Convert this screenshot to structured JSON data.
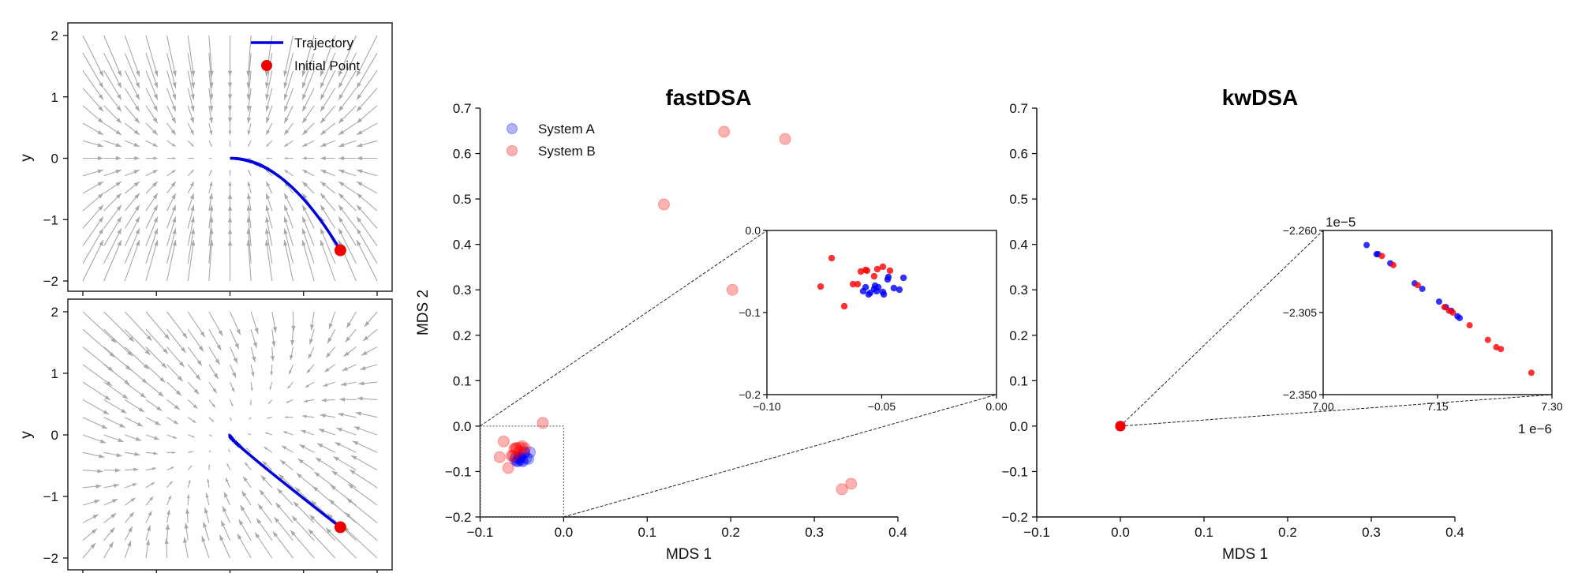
{
  "chart_data": [
    {
      "id": "phase-top",
      "type": "quiver",
      "ylabel": "y",
      "xlabel": "",
      "xlim": [
        -2.2,
        2.2
      ],
      "ylim": [
        -2.2,
        2.2
      ],
      "yticks": [
        2,
        1,
        0,
        -1,
        -2
      ],
      "ytick_labels": [
        "2",
        "1",
        "0",
        "−1",
        "−2"
      ],
      "xticks": [
        -2,
        -1,
        0,
        1,
        2
      ],
      "grid_range": [
        -2,
        2
      ],
      "grid_n": 15,
      "field_matrix": [
        [
          -0.5,
          0.0
        ],
        [
          0.0,
          -1.0
        ]
      ],
      "initial_point": [
        1.5,
        -1.5
      ],
      "equilibrium": [
        0,
        0
      ],
      "legend": [
        {
          "label": "Trajectory",
          "kind": "line",
          "color": "#0000dd"
        },
        {
          "label": "Initial Point",
          "kind": "marker",
          "color": "#ee0000"
        }
      ],
      "legend_position": "top-right",
      "colors": {
        "trajectory": "#0000dd",
        "initial_point": "#ee0000",
        "arrows": "#a8a8a8"
      }
    },
    {
      "id": "phase-bottom",
      "type": "quiver",
      "ylabel": "y",
      "xlabel": "",
      "xlim": [
        -2.2,
        2.2
      ],
      "ylim": [
        -2.2,
        2.2
      ],
      "yticks": [
        2,
        1,
        0,
        -1,
        -2
      ],
      "ytick_labels": [
        "2",
        "1",
        "0",
        "−1",
        "−2"
      ],
      "xticks": [
        -2,
        -1,
        0,
        1,
        2
      ],
      "grid_range": [
        -2,
        2
      ],
      "grid_n": 15,
      "field_matrix": [
        [
          -1.0,
          0.45
        ],
        [
          0.35,
          -1.0
        ]
      ],
      "initial_point": [
        1.5,
        -1.5
      ],
      "equilibrium": [
        0,
        0
      ],
      "colors": {
        "trajectory": "#0000dd",
        "initial_point": "#ee0000",
        "arrows": "#a8a8a8"
      }
    },
    {
      "id": "fastdsa",
      "type": "scatter",
      "title": "fastDSA",
      "xlabel": "MDS 1",
      "ylabel": "MDS 2",
      "xlim": [
        -0.1,
        0.4
      ],
      "ylim": [
        -0.2,
        0.7
      ],
      "xticks": [
        -0.1,
        0.0,
        0.1,
        0.2,
        0.3,
        0.4
      ],
      "xtick_labels": [
        "−0.1",
        "0.0",
        "0.1",
        "0.2",
        "0.3",
        "0.4"
      ],
      "yticks": [
        0.7,
        0.6,
        0.5,
        0.4,
        0.3,
        0.2,
        0.1,
        0.0,
        -0.1,
        -0.2
      ],
      "ytick_labels": [
        "0.7",
        "0.6",
        "0.5",
        "0.4",
        "0.3",
        "0.2",
        "0.1",
        "0.0",
        "−0.1",
        "−0.2"
      ],
      "grid": false,
      "legend_position": "top-left",
      "series": [
        {
          "name": "System A",
          "color": "#0000ff",
          "points": [
            [
              -0.0581,
              -0.074
            ],
            [
              -0.057,
              -0.0692
            ],
            [
              -0.0557,
              -0.0779
            ],
            [
              -0.055,
              -0.076
            ],
            [
              -0.0533,
              -0.0712
            ],
            [
              -0.0529,
              -0.0673
            ],
            [
              -0.0522,
              -0.074
            ],
            [
              -0.0515,
              -0.0692
            ],
            [
              -0.0495,
              -0.075
            ],
            [
              -0.0491,
              -0.0779
            ],
            [
              -0.0474,
              -0.0596
            ],
            [
              -0.0471,
              -0.0567
            ],
            [
              -0.0447,
              -0.0702
            ],
            [
              -0.0423,
              -0.0721
            ],
            [
              -0.0405,
              -0.0577
            ]
          ]
        },
        {
          "name": "System B",
          "color": "#ff0000",
          "points": [
            [
              -0.0718,
              -0.0337
            ],
            [
              -0.0766,
              -0.0683
            ],
            [
              -0.0663,
              -0.0923
            ],
            [
              -0.0625,
              -0.0654
            ],
            [
              -0.0605,
              -0.0654
            ],
            [
              -0.0591,
              -0.05
            ],
            [
              -0.057,
              -0.0481
            ],
            [
              -0.0564,
              -0.049
            ],
            [
              -0.0533,
              -0.0558
            ],
            [
              -0.0519,
              -0.0471
            ],
            [
              -0.0495,
              -0.0442
            ],
            [
              -0.0464,
              -0.049
            ],
            [
              -0.025,
              0.007
            ],
            [
              0.12,
              0.488
            ],
            [
              0.192,
              0.648
            ],
            [
              0.265,
              0.632
            ],
            [
              0.202,
              0.3
            ],
            [
              0.333,
              -0.139
            ],
            [
              0.344,
              -0.127
            ]
          ]
        }
      ],
      "inset": {
        "xlim": [
          -0.1,
          0.0
        ],
        "ylim": [
          -0.2,
          0.0
        ],
        "xticks": [
          -0.1,
          -0.05,
          0.0
        ],
        "xtick_labels": [
          "−0.10",
          "−0.05",
          "0.00"
        ],
        "yticks": [
          0.0,
          -0.1,
          -0.2
        ],
        "ytick_labels": [
          "0.0",
          "−0.1",
          "−0.2"
        ]
      }
    },
    {
      "id": "kwdsa",
      "type": "scatter",
      "title": "kwDSA",
      "xlabel": "MDS 1",
      "ylabel": "",
      "xlim": [
        -0.1,
        0.4
      ],
      "ylim": [
        -0.2,
        0.7
      ],
      "xticks": [
        -0.1,
        0.0,
        0.1,
        0.2,
        0.3,
        0.4
      ],
      "xtick_labels": [
        "−0.1",
        "0.0",
        "0.1",
        "0.2",
        "0.3",
        "0.4"
      ],
      "yticks": [
        0.7,
        0.6,
        0.5,
        0.4,
        0.3,
        0.2,
        0.1,
        0.0,
        -0.1,
        -0.2
      ],
      "ytick_labels": [
        "0.7",
        "0.6",
        "0.5",
        "0.4",
        "0.3",
        "0.2",
        "0.1",
        "0.0",
        "−0.1",
        "−0.2"
      ],
      "grid": false,
      "x_scale": 1e-06,
      "y_scale": 1e-05,
      "series": [
        {
          "name": "System A",
          "color": "#0000ff",
          "points_scaled": [
            [
              7.057,
              -2.268
            ],
            [
              7.07,
              -2.273
            ],
            [
              7.072,
              -2.273
            ],
            [
              7.088,
              -2.278
            ],
            [
              7.12,
              -2.289
            ],
            [
              7.13,
              -2.292
            ],
            [
              7.152,
              -2.299
            ],
            [
              7.161,
              -2.302
            ],
            [
              7.168,
              -2.304
            ],
            [
              7.176,
              -2.307
            ],
            [
              7.179,
              -2.308
            ]
          ]
        },
        {
          "name": "System B",
          "color": "#ff0000",
          "points_scaled": [
            [
              7.077,
              -2.274
            ],
            [
              7.092,
              -2.279
            ],
            [
              7.124,
              -2.29
            ],
            [
              7.159,
              -2.302
            ],
            [
              7.165,
              -2.304
            ],
            [
              7.17,
              -2.305
            ],
            [
              7.192,
              -2.312
            ],
            [
              7.216,
              -2.32
            ],
            [
              7.227,
              -2.324
            ],
            [
              7.233,
              -2.325
            ],
            [
              7.273,
              -2.338
            ]
          ]
        }
      ],
      "inset": {
        "xlim": [
          7.0,
          7.3
        ],
        "ylim": [
          -2.35,
          -2.26
        ],
        "xticks": [
          7.0,
          7.15,
          7.3
        ],
        "xtick_labels": [
          "7.00",
          "7.15",
          "7.30"
        ],
        "yticks": [
          -2.26,
          -2.305,
          -2.35
        ],
        "ytick_labels": [
          "−2.260",
          "−2.305",
          "−2.350"
        ],
        "x_offset_label": "1 e−6",
        "y_offset_label": "1e−5"
      }
    }
  ]
}
